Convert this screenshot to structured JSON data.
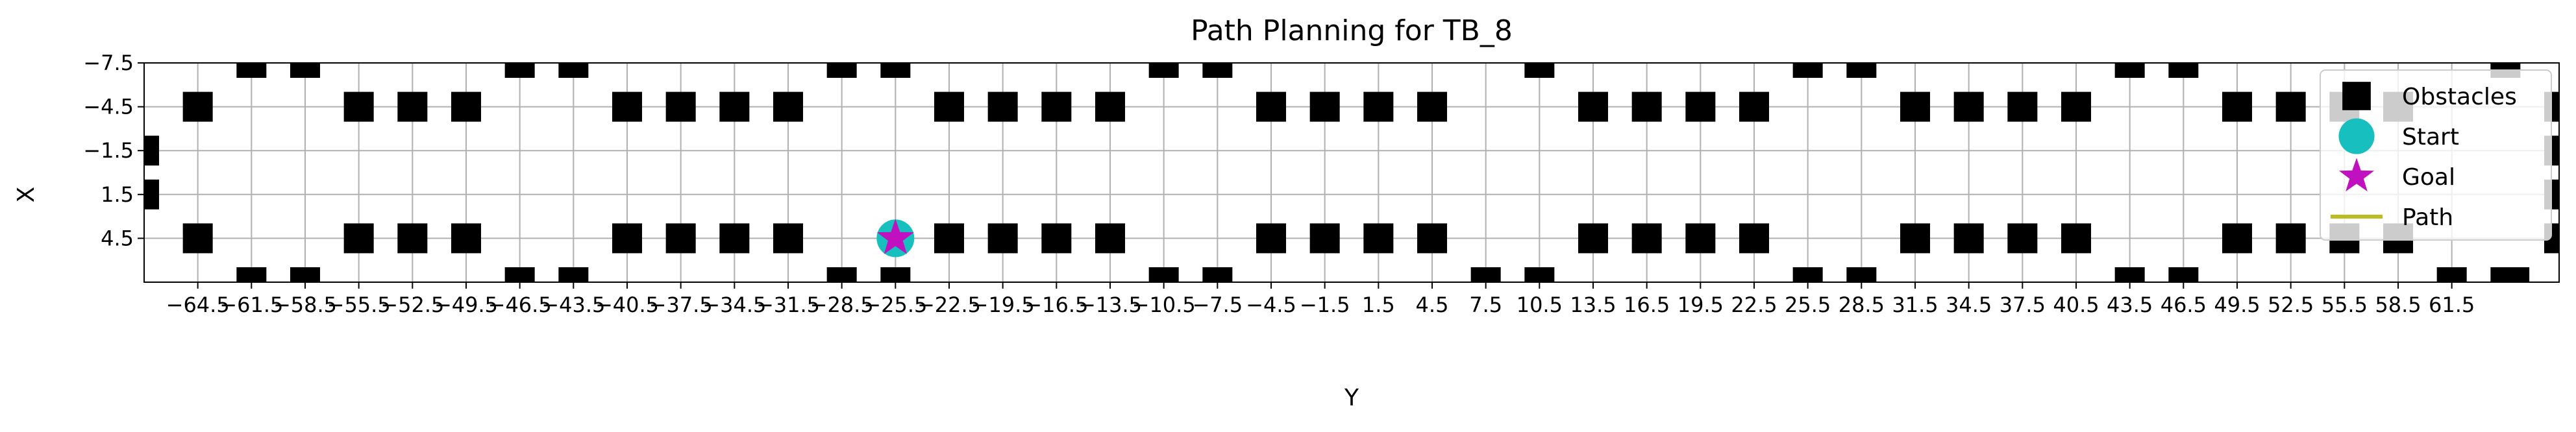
{
  "chart_data": {
    "type": "scatter",
    "title": "Path Planning for TB_8",
    "xlabel": "Y",
    "ylabel": "X",
    "xlim": [
      -67.5,
      67.5
    ],
    "ylim": [
      7.5,
      -7.5
    ],
    "y_inverted": true,
    "grid": true,
    "legend_position": "top-right",
    "x_ticks": [
      -64.5,
      -61.5,
      -58.5,
      -55.5,
      -52.5,
      -49.5,
      -46.5,
      -43.5,
      -40.5,
      -37.5,
      -34.5,
      -31.5,
      -28.5,
      -25.5,
      -22.5,
      -19.5,
      -16.5,
      -13.5,
      -10.5,
      -7.5,
      -4.5,
      -1.5,
      1.5,
      4.5,
      7.5,
      10.5,
      13.5,
      16.5,
      19.5,
      22.5,
      25.5,
      28.5,
      31.5,
      34.5,
      37.5,
      40.5,
      43.5,
      46.5,
      49.5,
      52.5,
      55.5,
      58.5,
      61.5
    ],
    "x_tick_labels": [
      "−64.5",
      "−61.5",
      "−58.5",
      "−55.5",
      "−52.5",
      "−49.5",
      "−46.5",
      "−43.5",
      "−40.5",
      "−37.5",
      "−34.5",
      "−31.5",
      "−28.5",
      "−25.5",
      "−22.5",
      "−19.5",
      "−16.5",
      "−13.5",
      "−10.5",
      "−7.5",
      "−4.5",
      "−1.5",
      "1.5",
      "4.5",
      "7.5",
      "10.5",
      "13.5",
      "16.5",
      "19.5",
      "22.5",
      "25.5",
      "28.5",
      "31.5",
      "34.5",
      "37.5",
      "40.5",
      "43.5",
      "46.5",
      "49.5",
      "52.5",
      "55.5",
      "58.5",
      "61.5"
    ],
    "y_ticks": [
      -7.5,
      -4.5,
      -1.5,
      1.5,
      4.5
    ],
    "y_tick_labels": [
      "−7.5",
      "−4.5",
      "−1.5",
      "1.5",
      "4.5"
    ],
    "series": [
      {
        "name": "Obstacles",
        "marker": "square",
        "color": "#000000",
        "points": [
          [
            -64.5,
            -4.5
          ],
          [
            -55.5,
            -4.5
          ],
          [
            -52.5,
            -4.5
          ],
          [
            -49.5,
            -4.5
          ],
          [
            -40.5,
            -4.5
          ],
          [
            -37.5,
            -4.5
          ],
          [
            -34.5,
            -4.5
          ],
          [
            -31.5,
            -4.5
          ],
          [
            -22.5,
            -4.5
          ],
          [
            -19.5,
            -4.5
          ],
          [
            -16.5,
            -4.5
          ],
          [
            -13.5,
            -4.5
          ],
          [
            -4.5,
            -4.5
          ],
          [
            -1.5,
            -4.5
          ],
          [
            1.5,
            -4.5
          ],
          [
            4.5,
            -4.5
          ],
          [
            13.5,
            -4.5
          ],
          [
            16.5,
            -4.5
          ],
          [
            19.5,
            -4.5
          ],
          [
            22.5,
            -4.5
          ],
          [
            31.5,
            -4.5
          ],
          [
            34.5,
            -4.5
          ],
          [
            37.5,
            -4.5
          ],
          [
            40.5,
            -4.5
          ],
          [
            49.5,
            -4.5
          ],
          [
            52.5,
            -4.5
          ],
          [
            55.5,
            -4.5
          ],
          [
            58.5,
            -4.5
          ],
          [
            67.5,
            -4.5
          ],
          [
            -64.5,
            4.5
          ],
          [
            -55.5,
            4.5
          ],
          [
            -52.5,
            4.5
          ],
          [
            -49.5,
            4.5
          ],
          [
            -40.5,
            4.5
          ],
          [
            -37.5,
            4.5
          ],
          [
            -34.5,
            4.5
          ],
          [
            -31.5,
            4.5
          ],
          [
            -22.5,
            4.5
          ],
          [
            -19.5,
            4.5
          ],
          [
            -16.5,
            4.5
          ],
          [
            -13.5,
            4.5
          ],
          [
            -4.5,
            4.5
          ],
          [
            -1.5,
            4.5
          ],
          [
            1.5,
            4.5
          ],
          [
            4.5,
            4.5
          ],
          [
            13.5,
            4.5
          ],
          [
            16.5,
            4.5
          ],
          [
            19.5,
            4.5
          ],
          [
            22.5,
            4.5
          ],
          [
            31.5,
            4.5
          ],
          [
            34.5,
            4.5
          ],
          [
            37.5,
            4.5
          ],
          [
            40.5,
            4.5
          ],
          [
            49.5,
            4.5
          ],
          [
            52.5,
            4.5
          ],
          [
            55.5,
            4.5
          ],
          [
            58.5,
            4.5
          ],
          [
            67.5,
            4.5
          ],
          [
            -61.5,
            -7.5
          ],
          [
            -58.5,
            -7.5
          ],
          [
            -46.5,
            -7.5
          ],
          [
            -43.5,
            -7.5
          ],
          [
            -28.5,
            -7.5
          ],
          [
            -25.5,
            -7.5
          ],
          [
            -10.5,
            -7.5
          ],
          [
            -7.5,
            -7.5
          ],
          [
            10.5,
            -7.5
          ],
          [
            25.5,
            -7.5
          ],
          [
            28.5,
            -7.5
          ],
          [
            43.5,
            -7.5
          ],
          [
            46.5,
            -7.5
          ],
          [
            64.5,
            -7.5
          ],
          [
            -61.5,
            7.5
          ],
          [
            -58.5,
            7.5
          ],
          [
            -46.5,
            7.5
          ],
          [
            -43.5,
            7.5
          ],
          [
            -28.5,
            7.5
          ],
          [
            -25.5,
            7.5
          ],
          [
            -10.5,
            7.5
          ],
          [
            -7.5,
            7.5
          ],
          [
            7.5,
            7.5
          ],
          [
            10.5,
            7.5
          ],
          [
            25.5,
            7.5
          ],
          [
            28.5,
            7.5
          ],
          [
            43.5,
            7.5
          ],
          [
            46.5,
            7.5
          ],
          [
            61.5,
            7.5
          ],
          [
            64.5,
            7.5
          ],
          [
            65.0,
            7.5
          ],
          [
            -67.5,
            -1.5
          ],
          [
            -67.5,
            1.5
          ],
          [
            67.5,
            -1.5
          ],
          [
            67.5,
            1.5
          ]
        ]
      },
      {
        "name": "Start",
        "marker": "circle",
        "color": "#17bfbf",
        "points": [
          [
            -25.5,
            4.5
          ]
        ]
      },
      {
        "name": "Goal",
        "marker": "star",
        "color": "#c010c0",
        "points": [
          [
            -25.5,
            4.5
          ]
        ]
      },
      {
        "name": "Path",
        "marker": "line",
        "color": "#bcbd22",
        "points": []
      }
    ]
  }
}
